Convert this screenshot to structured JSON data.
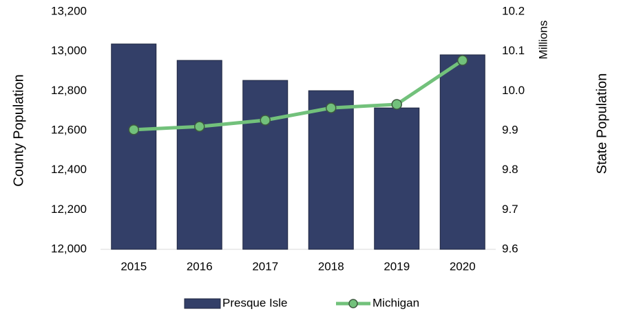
{
  "chart_data": {
    "type": "combo",
    "categories": [
      "2015",
      "2016",
      "2017",
      "2018",
      "2019",
      "2020"
    ],
    "series": [
      {
        "name": "Presque Isle",
        "type": "bar",
        "color": "#333f68",
        "values": [
          13037,
          12954,
          12853,
          12801,
          12714,
          12982
        ]
      },
      {
        "name": "Michigan",
        "type": "line",
        "axis": "y2",
        "color": "#72c17b",
        "values": [
          9.902,
          9.91,
          9.926,
          9.957,
          9.966,
          10.077
        ]
      }
    ],
    "ylabel": "County Population",
    "y2label": "State Population",
    "y2unit": "Millions",
    "ylim": [
      12000,
      13200
    ],
    "yticks": [
      {
        "value": 12000,
        "label": "12,000"
      },
      {
        "value": 12200,
        "label": "12,200"
      },
      {
        "value": 12400,
        "label": "12,400"
      },
      {
        "value": 12600,
        "label": "12,600"
      },
      {
        "value": 12800,
        "label": "12,800"
      },
      {
        "value": 13000,
        "label": "13,000"
      },
      {
        "value": 13200,
        "label": "13,200"
      }
    ],
    "y2lim": [
      9.6,
      10.2
    ],
    "y2ticks": [
      9.6,
      9.7,
      9.8,
      9.9,
      {
        "value": 10,
        "label": "10.0"
      },
      10.1,
      10.2
    ],
    "grid": false,
    "legend": "bottom"
  }
}
